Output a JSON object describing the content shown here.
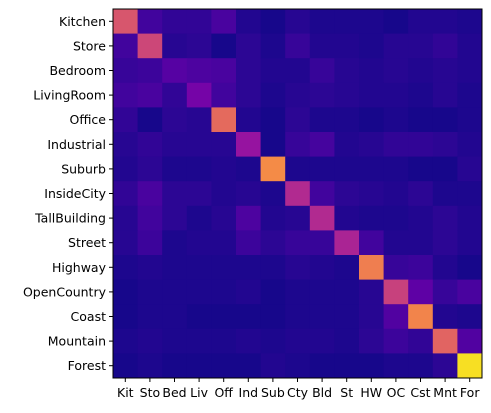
{
  "chart_data": {
    "type": "heatmap",
    "colormap": "plasma",
    "row_labels": [
      "Kitchen",
      "Store",
      "Bedroom",
      "LivingRoom",
      "Office",
      "Industrial",
      "Suburb",
      "InsideCity",
      "TallBuilding",
      "Street",
      "Highway",
      "OpenCountry",
      "Coast",
      "Mountain",
      "Forest"
    ],
    "col_labels": [
      "Kit",
      "Sto",
      "Bed",
      "Liv",
      "Off",
      "Ind",
      "Sub",
      "Cty",
      "Bld",
      "St",
      "HW",
      "OC",
      "Cst",
      "Mnt",
      "For"
    ],
    "values": [
      [
        0.55,
        0.1,
        0.07,
        0.07,
        0.12,
        0.04,
        0.02,
        0.05,
        0.03,
        0.03,
        0.03,
        0.02,
        0.04,
        0.04,
        0.03
      ],
      [
        0.1,
        0.5,
        0.05,
        0.06,
        0.02,
        0.06,
        0.03,
        0.08,
        0.04,
        0.04,
        0.03,
        0.05,
        0.05,
        0.07,
        0.04
      ],
      [
        0.08,
        0.09,
        0.15,
        0.13,
        0.12,
        0.06,
        0.04,
        0.04,
        0.08,
        0.05,
        0.04,
        0.05,
        0.04,
        0.05,
        0.04
      ],
      [
        0.1,
        0.12,
        0.07,
        0.23,
        0.1,
        0.06,
        0.03,
        0.05,
        0.06,
        0.05,
        0.04,
        0.04,
        0.03,
        0.05,
        0.03
      ],
      [
        0.07,
        0.02,
        0.06,
        0.05,
        0.62,
        0.04,
        0.02,
        0.06,
        0.03,
        0.03,
        0.02,
        0.03,
        0.02,
        0.02,
        0.03
      ],
      [
        0.05,
        0.07,
        0.05,
        0.05,
        0.05,
        0.32,
        0.02,
        0.08,
        0.11,
        0.04,
        0.05,
        0.07,
        0.07,
        0.06,
        0.04
      ],
      [
        0.04,
        0.06,
        0.03,
        0.03,
        0.04,
        0.03,
        0.72,
        0.03,
        0.03,
        0.03,
        0.03,
        0.03,
        0.02,
        0.02,
        0.05
      ],
      [
        0.07,
        0.12,
        0.06,
        0.06,
        0.04,
        0.05,
        0.03,
        0.4,
        0.1,
        0.06,
        0.05,
        0.04,
        0.06,
        0.03,
        0.03
      ],
      [
        0.05,
        0.1,
        0.06,
        0.03,
        0.05,
        0.13,
        0.04,
        0.05,
        0.4,
        0.04,
        0.03,
        0.03,
        0.04,
        0.06,
        0.04
      ],
      [
        0.05,
        0.09,
        0.03,
        0.04,
        0.04,
        0.09,
        0.06,
        0.08,
        0.08,
        0.38,
        0.1,
        0.04,
        0.04,
        0.06,
        0.04
      ],
      [
        0.03,
        0.04,
        0.03,
        0.03,
        0.03,
        0.03,
        0.03,
        0.05,
        0.04,
        0.03,
        0.68,
        0.08,
        0.09,
        0.04,
        0.02
      ],
      [
        0.02,
        0.03,
        0.03,
        0.03,
        0.03,
        0.04,
        0.02,
        0.03,
        0.03,
        0.03,
        0.05,
        0.48,
        0.17,
        0.08,
        0.12
      ],
      [
        0.02,
        0.03,
        0.03,
        0.02,
        0.02,
        0.02,
        0.02,
        0.03,
        0.03,
        0.03,
        0.05,
        0.14,
        0.7,
        0.04,
        0.03
      ],
      [
        0.03,
        0.04,
        0.03,
        0.03,
        0.03,
        0.04,
        0.03,
        0.04,
        0.04,
        0.03,
        0.06,
        0.09,
        0.07,
        0.6,
        0.14
      ],
      [
        0.02,
        0.03,
        0.02,
        0.02,
        0.02,
        0.02,
        0.04,
        0.03,
        0.02,
        0.02,
        0.02,
        0.03,
        0.03,
        0.06,
        0.94
      ]
    ],
    "vmin": 0,
    "vmax": 1,
    "xlabel": "",
    "ylabel": "",
    "title": ""
  }
}
